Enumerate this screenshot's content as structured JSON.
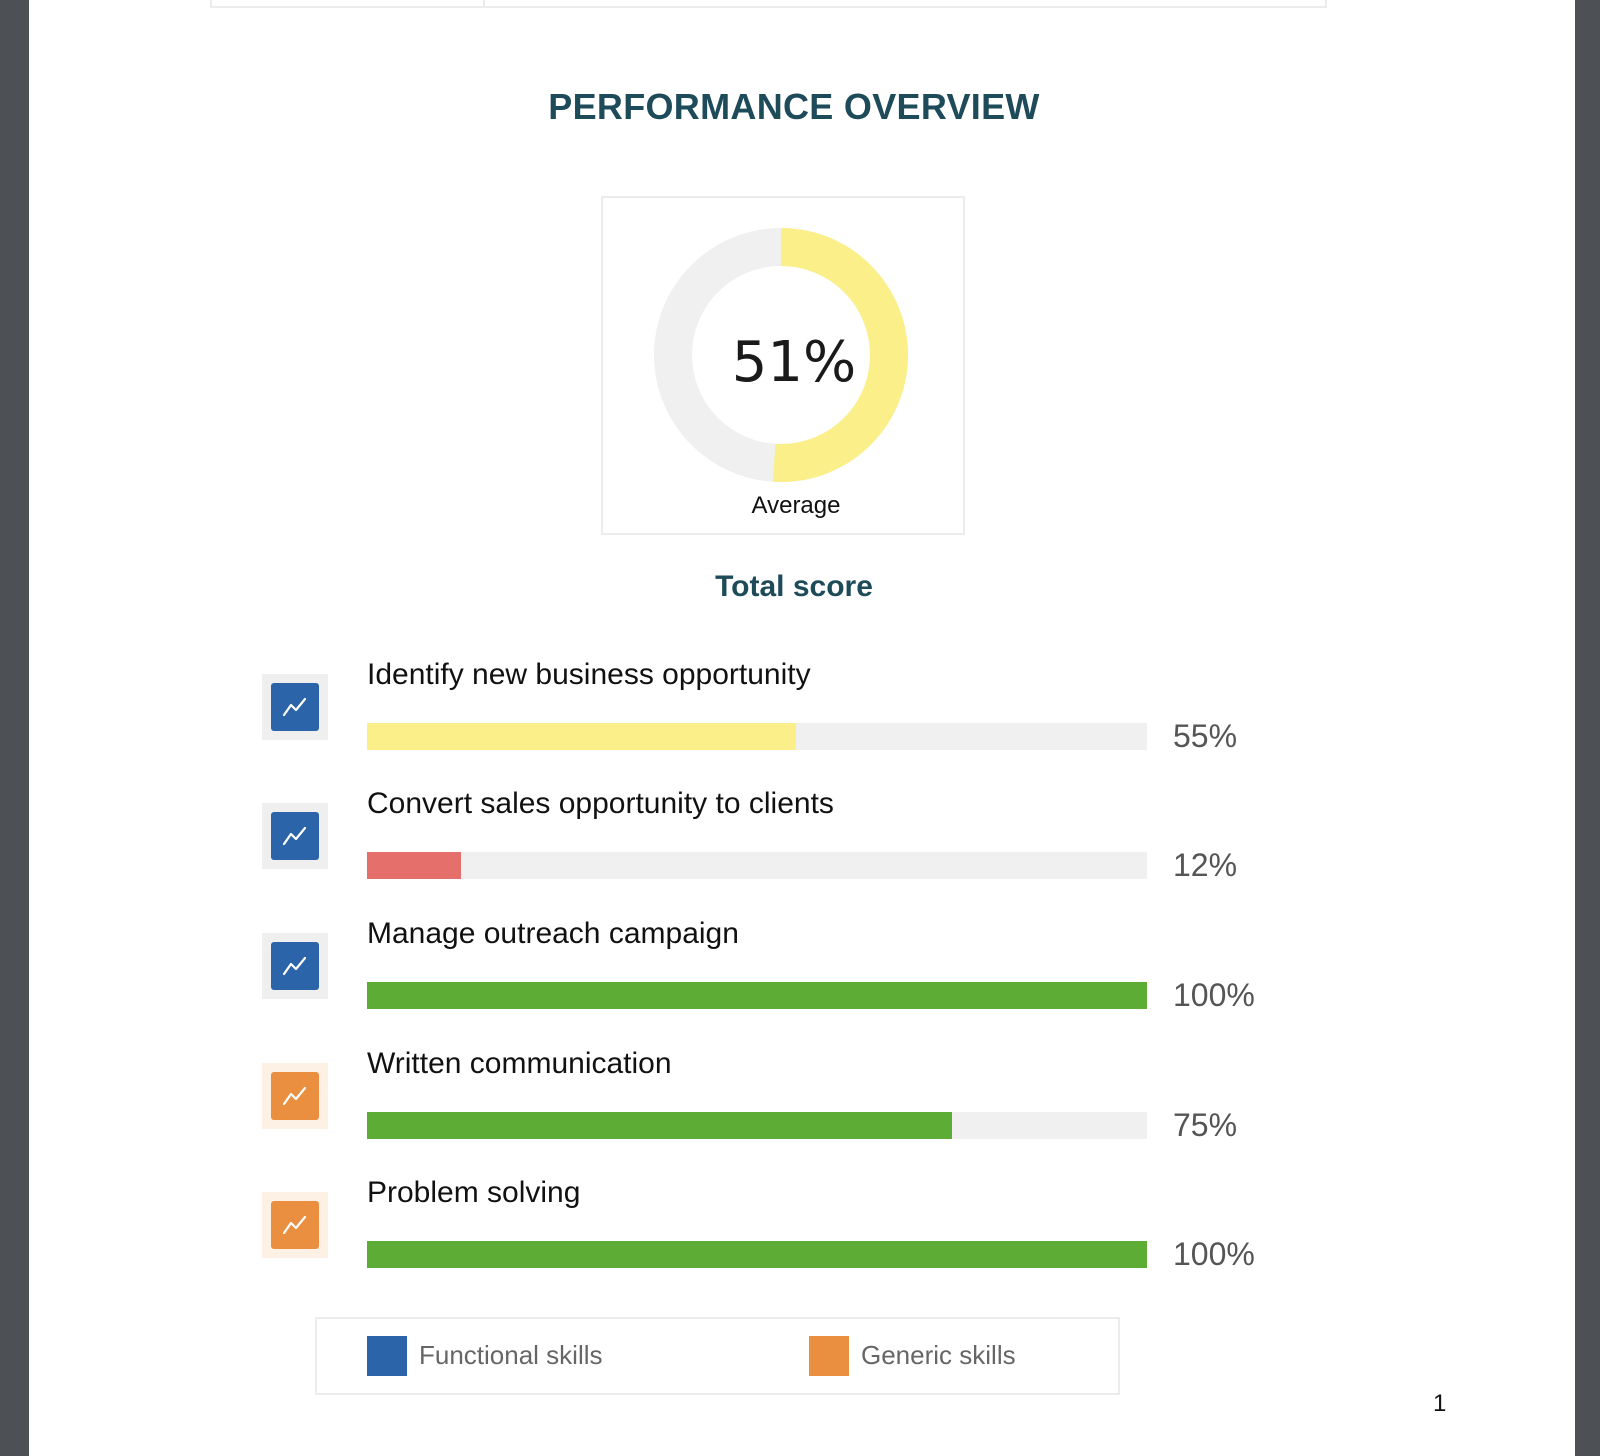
{
  "title": "PERFORMANCE OVERVIEW",
  "total": {
    "value": 51,
    "value_text": "51%",
    "rating": "Average",
    "label": "Total score",
    "color": "#fbef8a",
    "track_color": "#f0f0f0"
  },
  "skills": [
    {
      "name": "Identify new business opportunity",
      "value": 55,
      "value_text": "55%",
      "type": "functional",
      "bar_color": "#fbef8a"
    },
    {
      "name": "Convert sales opportunity to clients",
      "value": 12,
      "value_text": "12%",
      "type": "functional",
      "bar_color": "#e5706b"
    },
    {
      "name": "Manage outreach campaign",
      "value": 100,
      "value_text": "100%",
      "type": "functional",
      "bar_color": "#5dac36"
    },
    {
      "name": "Written communication",
      "value": 75,
      "value_text": "75%",
      "type": "generic",
      "bar_color": "#5dac36"
    },
    {
      "name": "Problem solving",
      "value": 100,
      "value_text": "100%",
      "type": "generic",
      "bar_color": "#5dac36"
    }
  ],
  "legend": {
    "functional": {
      "label": "Functional skills",
      "color": "#2b64a8"
    },
    "generic": {
      "label": "Generic skills",
      "color": "#ea8f3f"
    }
  },
  "icon_tile_colors": {
    "functional": "#efefef",
    "generic": "#fdf1e6"
  },
  "icon_name": "trend-chart-icon",
  "page_number": "1"
}
